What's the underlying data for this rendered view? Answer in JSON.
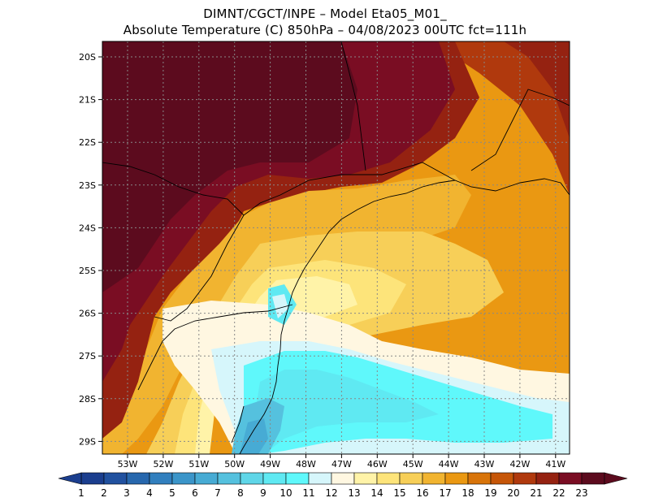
{
  "header": {
    "line1": "DIMNT/CGCT/INPE –  Model Eta05_M01_",
    "line2": "Absolute Temperature (C) 850hPa –  04/08/2023 00UTC fct=111h"
  },
  "map": {
    "lat_labels": [
      "20S",
      "21S",
      "22S",
      "23S",
      "24S",
      "25S",
      "26S",
      "27S",
      "28S",
      "29S"
    ],
    "lon_labels": [
      "53W",
      "52W",
      "51W",
      "50W",
      "49W",
      "48W",
      "47W",
      "46W",
      "45W",
      "44W",
      "43W",
      "42W",
      "41W"
    ],
    "grid": true,
    "coastline_color": "#000000"
  },
  "colorbar": {
    "labels": [
      "1",
      "2",
      "3",
      "4",
      "5",
      "6",
      "7",
      "8",
      "9",
      "10",
      "11",
      "12",
      "13",
      "14",
      "15",
      "16",
      "17",
      "18",
      "19",
      "20",
      "21",
      "22",
      "23"
    ],
    "colors": [
      "#1b3e8e",
      "#21519f",
      "#2767ad",
      "#317fbe",
      "#3b95c9",
      "#47abd4",
      "#55c1de",
      "#5fd6e8",
      "#5fe9f2",
      "#5ff8fb",
      "#d6f6fb",
      "#fff7e1",
      "#fff3a8",
      "#fde47a",
      "#f7cf58",
      "#f1b430",
      "#ea9812",
      "#d8740a",
      "#c65608",
      "#b0390d",
      "#952211",
      "#7a0d23",
      "#5c0b1e"
    ],
    "left_arrow": "#1b3e8e",
    "right_arrow": "#5c0b1e"
  }
}
